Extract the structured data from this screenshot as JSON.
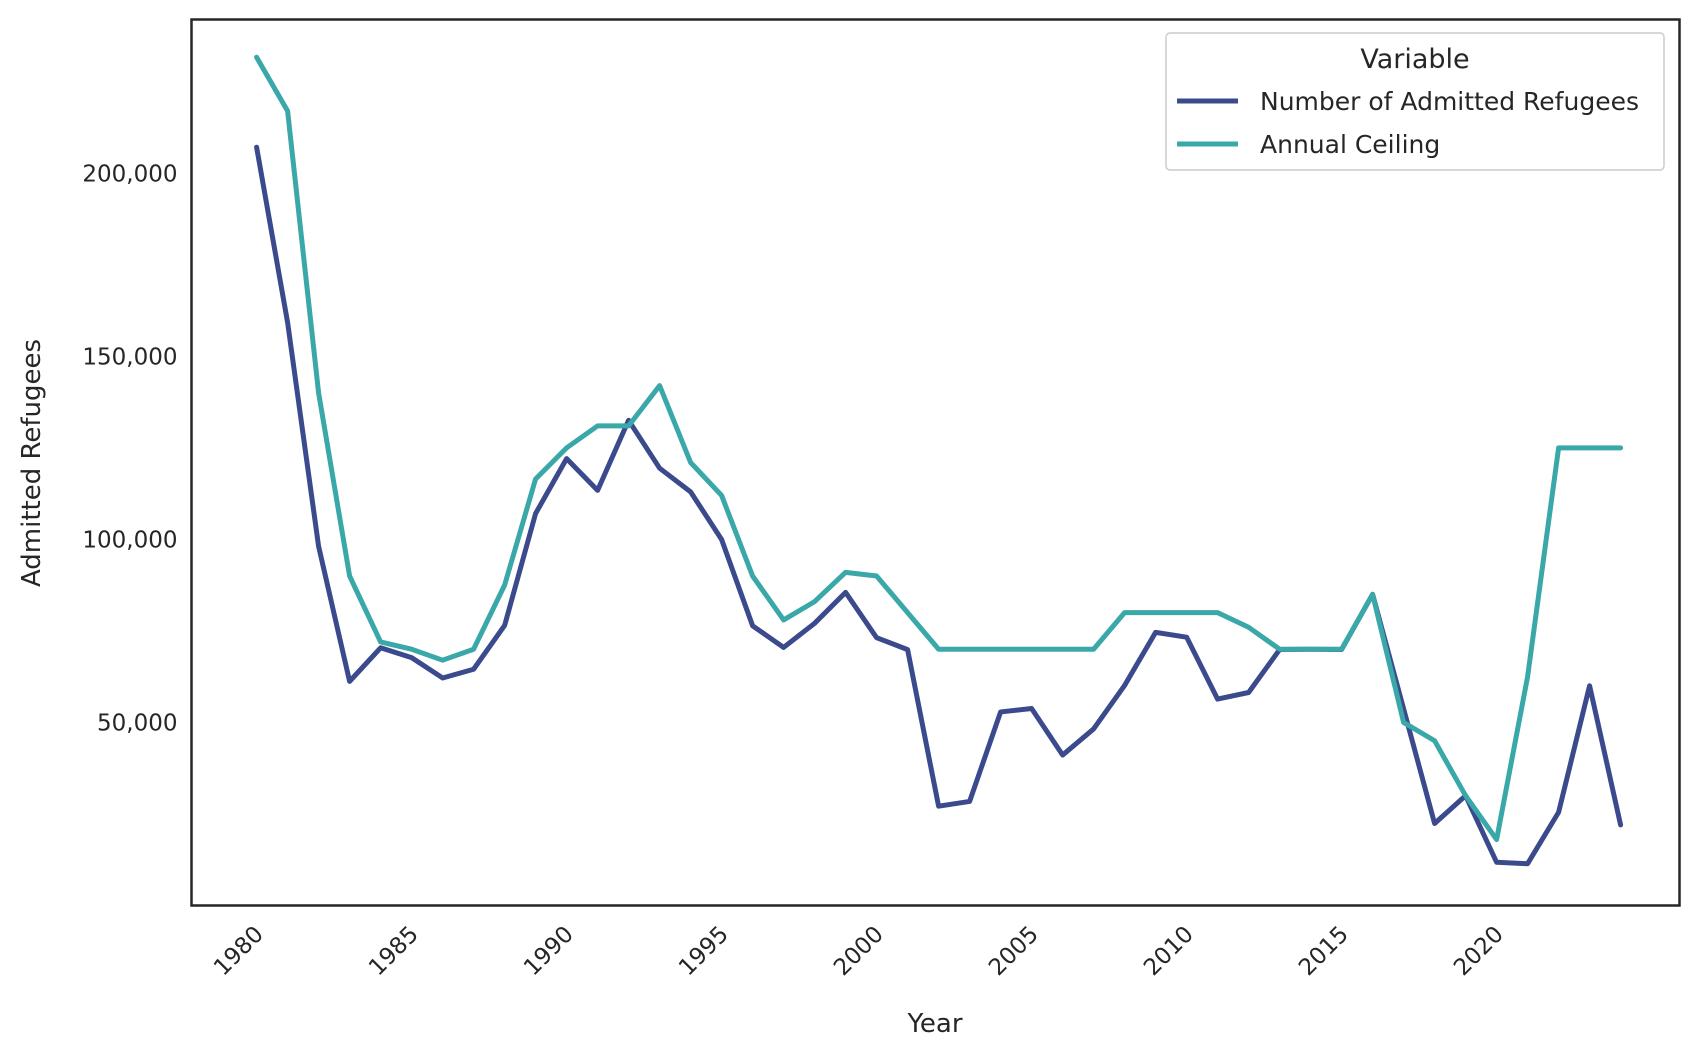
{
  "chart_data": {
    "type": "line",
    "xlabel": "Year",
    "ylabel": "Admitted Refugees",
    "xlim": [
      1977.9,
      2025.9
    ],
    "ylim": [
      0,
      242000
    ],
    "xticks": [
      1980,
      1985,
      1990,
      1995,
      2000,
      2005,
      2010,
      2015,
      2020
    ],
    "xtick_labels": [
      "1980",
      "1985",
      "1990",
      "1995",
      "2000",
      "2005",
      "2010",
      "2015",
      "2020"
    ],
    "yticks": [
      50000,
      100000,
      150000,
      200000
    ],
    "ytick_labels": [
      "50,000",
      "100,000",
      "150,000",
      "200,000"
    ],
    "grid": false,
    "legend": {
      "title": "Variable",
      "placement": "top-right"
    },
    "x": [
      1980,
      1981,
      1982,
      1983,
      1984,
      1985,
      1986,
      1987,
      1988,
      1989,
      1990,
      1991,
      1992,
      1993,
      1994,
      1995,
      1996,
      1997,
      1998,
      1999,
      2000,
      2001,
      2002,
      2003,
      2004,
      2005,
      2006,
      2007,
      2008,
      2009,
      2010,
      2011,
      2012,
      2013,
      2014,
      2015,
      2016,
      2017,
      2018,
      2019,
      2020,
      2021,
      2022,
      2023,
      2024
    ],
    "series": [
      {
        "name": "Number of Admitted Refugees",
        "color": "#3b4a8c",
        "values": [
          207116,
          159252,
          98096,
          61218,
          70393,
          67704,
          62146,
          64528,
          76483,
          107070,
          122066,
          113389,
          132531,
          119448,
          112981,
          99974,
          76403,
          70488,
          77080,
          85525,
          73147,
          69886,
          27131,
          28422,
          52868,
          53813,
          41094,
          48218,
          60107,
          74602,
          73293,
          56384,
          58179,
          69909,
          69975,
          69920,
          84989,
          53716,
          22405,
          30000,
          11814,
          11411,
          25465,
          60014,
          22000
        ]
      },
      {
        "name": "Annual Ceiling",
        "color": "#3aa8a8",
        "values": [
          231700,
          217000,
          140000,
          90000,
          72000,
          70000,
          67000,
          70000,
          87500,
          116500,
          125000,
          131000,
          131000,
          142000,
          121000,
          112000,
          90000,
          78000,
          83000,
          91000,
          90000,
          80000,
          70000,
          70000,
          70000,
          70000,
          70000,
          70000,
          80000,
          80000,
          80000,
          80000,
          76000,
          70000,
          70000,
          70000,
          85000,
          50000,
          45000,
          30000,
          18000,
          62500,
          125000,
          125000,
          125000
        ]
      }
    ]
  }
}
